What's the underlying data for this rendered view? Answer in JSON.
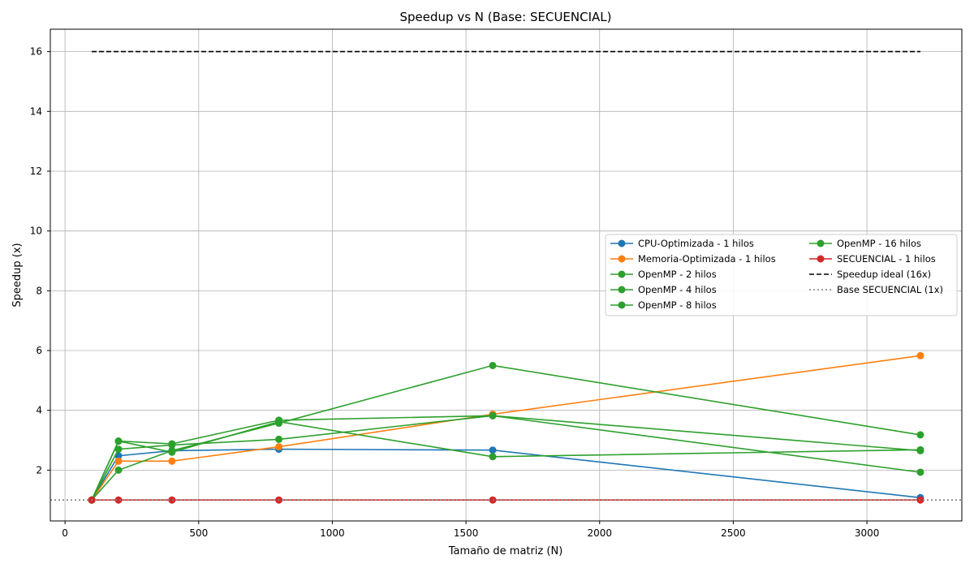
{
  "chart_data": {
    "type": "line",
    "title": "Speedup vs N (Base: SECUENCIAL)",
    "xlabel": "Tamaño de matriz (N)",
    "ylabel": "Speedup (x)",
    "xlim": [
      -55,
      3355
    ],
    "ylim": [
      0.3,
      16.75
    ],
    "xticks": [
      0,
      500,
      1000,
      1500,
      2000,
      2500,
      3000
    ],
    "yticks": [
      2,
      4,
      6,
      8,
      10,
      12,
      14,
      16
    ],
    "grid": true,
    "legend_position": "center-right",
    "legend_columns": 2,
    "x": [
      100,
      200,
      400,
      800,
      1600,
      3200
    ],
    "series": [
      {
        "name": "CPU-Optimizada - 1 hilos",
        "color": "#1f77b4",
        "style": "solid",
        "marker": "circle",
        "values": [
          1.0,
          2.48,
          2.65,
          2.7,
          2.67,
          1.08
        ]
      },
      {
        "name": "Memoria-Optimizada - 1 hilos",
        "color": "#ff7f0e",
        "style": "solid",
        "marker": "circle",
        "values": [
          1.0,
          2.3,
          2.3,
          2.78,
          3.87,
          5.83
        ]
      },
      {
        "name": "OpenMP - 2 hilos",
        "color": "#2ca02c",
        "style": "solid",
        "marker": "circle",
        "values": [
          1.0,
          2.7,
          2.84,
          3.03,
          3.82,
          2.65
        ]
      },
      {
        "name": "OpenMP - 4 hilos",
        "color": "#2ca02c",
        "style": "solid",
        "marker": "circle",
        "values": [
          1.0,
          2.0,
          2.65,
          3.57,
          5.5,
          3.18
        ]
      },
      {
        "name": "OpenMP - 8 hilos",
        "color": "#2ca02c",
        "style": "solid",
        "marker": "circle",
        "values": [
          1.0,
          2.97,
          2.6,
          3.62,
          2.45,
          2.68
        ]
      },
      {
        "name": "OpenMP - 16 hilos",
        "color": "#2ca02c",
        "style": "solid",
        "marker": "circle",
        "values": [
          1.0,
          2.97,
          2.88,
          3.67,
          3.82,
          1.93
        ]
      },
      {
        "name": "SECUENCIAL - 1 hilos",
        "color": "#d62728",
        "style": "solid",
        "marker": "circle",
        "values": [
          1.0,
          1.0,
          1.0,
          1.0,
          1.0,
          1.0
        ]
      },
      {
        "name": "Speedup ideal (16x)",
        "color": "#000000",
        "style": "dashed",
        "marker": "none",
        "x": [
          100,
          3200
        ],
        "values": [
          16,
          16
        ]
      },
      {
        "name": "Base SECUENCIAL (1x)",
        "color": "#808080",
        "style": "dotted",
        "marker": "none",
        "x": [
          -55,
          3355
        ],
        "values": [
          1,
          1
        ]
      }
    ]
  }
}
